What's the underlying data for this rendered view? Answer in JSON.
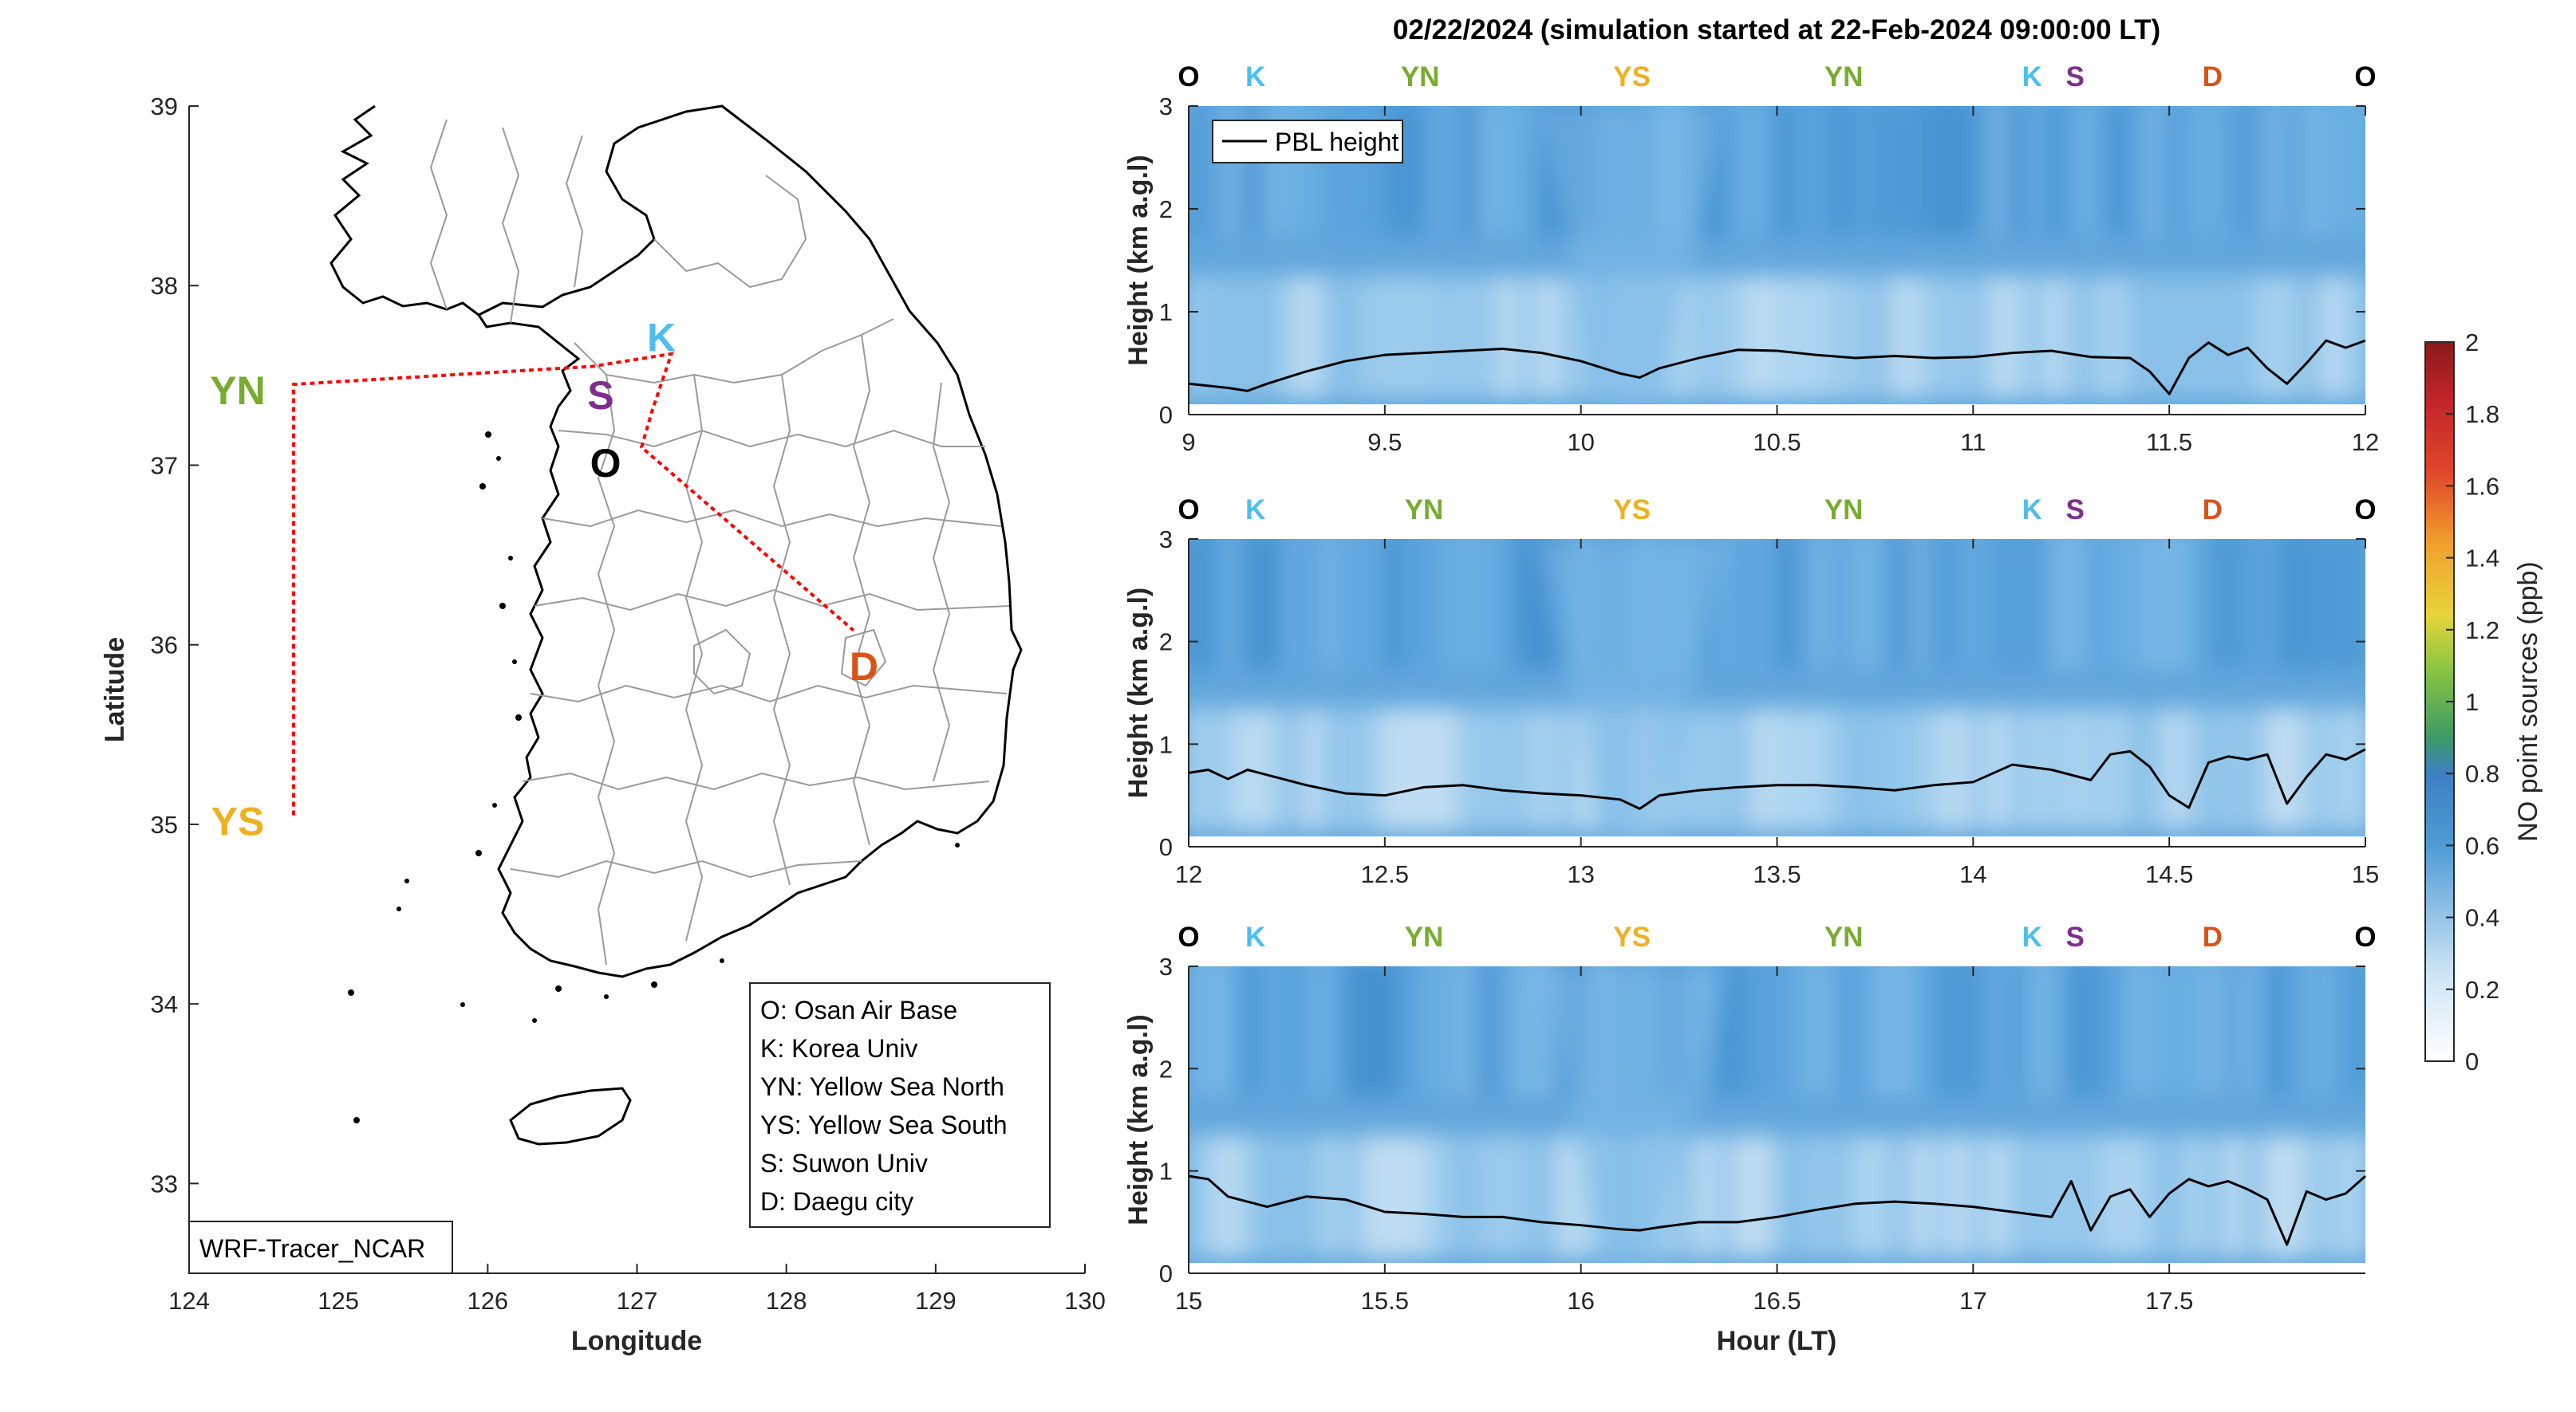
{
  "title": "02/22/2024 (simulation started at 22-Feb-2024 09:00:00 LT)",
  "colors": {
    "O": "#000000",
    "K": "#4DBEEE",
    "S": "#7E2F8E",
    "YN": "#77AC30",
    "YS": "#EDB120",
    "D": "#D95319",
    "track": "#FF0000"
  },
  "map": {
    "xlabel": "Longitude",
    "ylabel": "Latitude",
    "xlim": [
      124,
      130
    ],
    "ylim": [
      32.5,
      39
    ],
    "xticks": [
      "124",
      "125",
      "126",
      "127",
      "128",
      "129",
      "130"
    ],
    "yticks": [
      "33",
      "34",
      "35",
      "36",
      "37",
      "38",
      "39"
    ],
    "model_tag": "WRF-Tracer_NCAR",
    "legend": [
      "O: Osan Air Base",
      "K: Korea Univ",
      "YN: Yellow Sea North",
      "YS: Yellow Sea South",
      "S: Suwon Univ",
      "D: Daegu city"
    ],
    "site_labels": [
      "YN",
      "K",
      "S",
      "O",
      "D",
      "YS"
    ],
    "sites": {
      "O": [
        127.03,
        37.09
      ],
      "K": [
        127.03,
        37.59
      ],
      "S": [
        126.97,
        37.29
      ],
      "YN": [
        124.7,
        37.45
      ],
      "YS": [
        124.7,
        35.05
      ],
      "D": [
        128.6,
        35.87
      ]
    },
    "flight_track": [
      [
        124.7,
        35.05
      ],
      [
        124.7,
        37.45
      ],
      [
        126.7,
        37.55
      ],
      [
        127.23,
        37.62
      ],
      [
        127.1,
        37.3
      ],
      [
        127.03,
        37.1
      ],
      [
        128.45,
        36.08
      ]
    ]
  },
  "colorbar": {
    "label": "NO point sources (ppb)",
    "ticks": [
      "0",
      "0.2",
      "0.4",
      "0.6",
      "0.8",
      "1",
      "1.2",
      "1.4",
      "1.6",
      "1.8",
      "2"
    ],
    "range": [
      0,
      2
    ],
    "colormap": [
      "#FFFFFF",
      "#9CCCEE",
      "#3E87C8",
      "#3FA54A",
      "#E8D23A",
      "#E9752A",
      "#C1242A",
      "#8B1A1A"
    ]
  },
  "chart_data": [
    {
      "type": "heatmap",
      "xlim": [
        9,
        12
      ],
      "ylim": [
        0,
        3
      ],
      "xticks": [
        "9",
        "9.5",
        "10",
        "10.5",
        "11",
        "11.5",
        "12"
      ],
      "yticks": [
        "0",
        "1",
        "2",
        "3"
      ],
      "ylabel": "Height (km a.g.l)",
      "xlabel": "",
      "legend": "PBL height",
      "top_labels": [
        {
          "name": "O",
          "x": 9.0
        },
        {
          "name": "K",
          "x": 9.17
        },
        {
          "name": "YN",
          "x": 9.59
        },
        {
          "name": "YS",
          "x": 10.13
        },
        {
          "name": "YN",
          "x": 10.67
        },
        {
          "name": "K",
          "x": 11.15
        },
        {
          "name": "S",
          "x": 11.26
        },
        {
          "name": "D",
          "x": 11.61
        },
        {
          "name": "O",
          "x": 12.0
        }
      ],
      "pbl": {
        "x": [
          9.0,
          9.1,
          9.15,
          9.2,
          9.3,
          9.4,
          9.5,
          9.6,
          9.7,
          9.8,
          9.9,
          10.0,
          10.1,
          10.15,
          10.2,
          10.3,
          10.4,
          10.5,
          10.6,
          10.7,
          10.8,
          10.9,
          11.0,
          11.1,
          11.2,
          11.3,
          11.4,
          11.45,
          11.5,
          11.55,
          11.6,
          11.65,
          11.7,
          11.75,
          11.8,
          11.85,
          11.9,
          11.95,
          12.0
        ],
        "y": [
          0.3,
          0.26,
          0.23,
          0.3,
          0.42,
          0.52,
          0.58,
          0.6,
          0.62,
          0.64,
          0.6,
          0.52,
          0.4,
          0.36,
          0.45,
          0.55,
          0.63,
          0.62,
          0.58,
          0.55,
          0.57,
          0.55,
          0.56,
          0.6,
          0.62,
          0.56,
          0.55,
          0.42,
          0.2,
          0.55,
          0.7,
          0.58,
          0.65,
          0.45,
          0.3,
          0.5,
          0.72,
          0.65,
          0.72
        ]
      }
    },
    {
      "type": "heatmap",
      "xlim": [
        12,
        15
      ],
      "ylim": [
        0,
        3
      ],
      "xticks": [
        "12",
        "12.5",
        "13",
        "13.5",
        "14",
        "14.5",
        "15"
      ],
      "yticks": [
        "0",
        "1",
        "2",
        "3"
      ],
      "ylabel": "Height (km a.g.l)",
      "xlabel": "",
      "top_labels": [
        {
          "name": "O",
          "x": 12.0
        },
        {
          "name": "K",
          "x": 12.17
        },
        {
          "name": "YN",
          "x": 12.6
        },
        {
          "name": "YS",
          "x": 13.13
        },
        {
          "name": "YN",
          "x": 13.67
        },
        {
          "name": "K",
          "x": 14.15
        },
        {
          "name": "S",
          "x": 14.26
        },
        {
          "name": "D",
          "x": 14.61
        },
        {
          "name": "O",
          "x": 15.0
        }
      ],
      "pbl": {
        "x": [
          12.0,
          12.05,
          12.1,
          12.15,
          12.2,
          12.3,
          12.4,
          12.5,
          12.6,
          12.7,
          12.8,
          12.9,
          13.0,
          13.1,
          13.15,
          13.2,
          13.3,
          13.4,
          13.5,
          13.6,
          13.7,
          13.8,
          13.9,
          14.0,
          14.1,
          14.2,
          14.3,
          14.35,
          14.4,
          14.45,
          14.5,
          14.55,
          14.6,
          14.65,
          14.7,
          14.75,
          14.8,
          14.85,
          14.9,
          14.95,
          15.0
        ],
        "y": [
          0.72,
          0.75,
          0.66,
          0.75,
          0.7,
          0.6,
          0.52,
          0.5,
          0.58,
          0.6,
          0.55,
          0.52,
          0.5,
          0.46,
          0.37,
          0.5,
          0.55,
          0.58,
          0.6,
          0.6,
          0.58,
          0.55,
          0.6,
          0.63,
          0.8,
          0.75,
          0.65,
          0.9,
          0.93,
          0.78,
          0.5,
          0.38,
          0.82,
          0.88,
          0.85,
          0.9,
          0.42,
          0.68,
          0.9,
          0.85,
          0.95
        ]
      }
    },
    {
      "type": "heatmap",
      "xlim": [
        15,
        18
      ],
      "ylim": [
        0,
        3
      ],
      "xticks": [
        "15",
        "15.5",
        "16",
        "16.5",
        "17",
        "17.5"
      ],
      "yticks": [
        "0",
        "1",
        "2",
        "3"
      ],
      "ylabel": "Height (km a.g.l)",
      "xlabel": "Hour (LT)",
      "top_labels": [
        {
          "name": "O",
          "x": 15.0
        },
        {
          "name": "K",
          "x": 15.17
        },
        {
          "name": "YN",
          "x": 15.6
        },
        {
          "name": "YS",
          "x": 16.13
        },
        {
          "name": "YN",
          "x": 16.67
        },
        {
          "name": "K",
          "x": 17.15
        },
        {
          "name": "S",
          "x": 17.26
        },
        {
          "name": "D",
          "x": 17.61
        },
        {
          "name": "O",
          "x": 18.0
        }
      ],
      "pbl": {
        "x": [
          15.0,
          15.05,
          15.1,
          15.15,
          15.2,
          15.3,
          15.4,
          15.5,
          15.6,
          15.7,
          15.8,
          15.9,
          16.0,
          16.1,
          16.15,
          16.2,
          16.3,
          16.4,
          16.5,
          16.6,
          16.7,
          16.8,
          16.9,
          17.0,
          17.1,
          17.2,
          17.25,
          17.3,
          17.35,
          17.4,
          17.45,
          17.5,
          17.55,
          17.6,
          17.65,
          17.7,
          17.75,
          17.8,
          17.85,
          17.9,
          17.95,
          18.0
        ],
        "y": [
          0.95,
          0.92,
          0.75,
          0.7,
          0.65,
          0.75,
          0.72,
          0.6,
          0.58,
          0.55,
          0.55,
          0.5,
          0.47,
          0.43,
          0.42,
          0.45,
          0.5,
          0.5,
          0.55,
          0.62,
          0.68,
          0.7,
          0.68,
          0.65,
          0.6,
          0.55,
          0.9,
          0.42,
          0.75,
          0.82,
          0.55,
          0.78,
          0.92,
          0.85,
          0.9,
          0.82,
          0.72,
          0.28,
          0.8,
          0.72,
          0.78,
          0.95
        ]
      }
    }
  ]
}
